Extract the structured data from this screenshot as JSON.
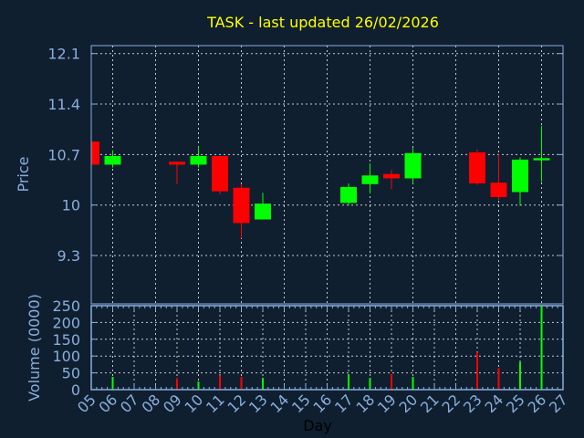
{
  "chart_data": {
    "type": "candlestick",
    "title": "TASK - last updated 26/02/2026",
    "xlabel": "Day",
    "x_ticks": [
      "05",
      "06",
      "07",
      "08",
      "09",
      "10",
      "11",
      "12",
      "13",
      "14",
      "15",
      "16",
      "17",
      "18",
      "19",
      "20",
      "21",
      "22",
      "23",
      "24",
      "25",
      "26",
      "27"
    ],
    "price": {
      "ylabel": "Price",
      "ylim": [
        8.63,
        12.21
      ],
      "y_ticks": [
        9.3,
        10,
        10.7,
        11.4,
        12.1
      ],
      "y_tick_labels": [
        "9.3",
        "10",
        "10.7",
        "11.4",
        "12.1"
      ],
      "grid": true,
      "candles": [
        {
          "day": 5,
          "open": 10.88,
          "high": 10.88,
          "low": 10.56,
          "close": 10.56
        },
        {
          "day": 6,
          "open": 10.56,
          "high": 10.76,
          "low": 10.52,
          "close": 10.68
        },
        {
          "day": 9,
          "open": 10.6,
          "high": 10.6,
          "low": 10.29,
          "close": 10.56
        },
        {
          "day": 10,
          "open": 10.56,
          "high": 10.81,
          "low": 10.52,
          "close": 10.68
        },
        {
          "day": 11,
          "open": 10.68,
          "high": 10.68,
          "low": 10.15,
          "close": 10.19
        },
        {
          "day": 12,
          "open": 10.24,
          "high": 10.29,
          "low": 9.54,
          "close": 9.75
        },
        {
          "day": 13,
          "open": 9.8,
          "high": 10.17,
          "low": 9.8,
          "close": 10.02
        },
        {
          "day": 17,
          "open": 10.03,
          "high": 10.3,
          "low": 9.99,
          "close": 10.25
        },
        {
          "day": 18,
          "open": 10.29,
          "high": 10.58,
          "low": 10.16,
          "close": 10.41
        },
        {
          "day": 19,
          "open": 10.43,
          "high": 10.49,
          "low": 10.22,
          "close": 10.37
        },
        {
          "day": 20,
          "open": 10.37,
          "high": 10.79,
          "low": 10.3,
          "close": 10.72
        },
        {
          "day": 23,
          "open": 10.73,
          "high": 10.77,
          "low": 10.28,
          "close": 10.3
        },
        {
          "day": 24,
          "open": 10.31,
          "high": 10.7,
          "low": 10.07,
          "close": 10.11
        },
        {
          "day": 25,
          "open": 10.18,
          "high": 10.66,
          "low": 9.99,
          "close": 10.63
        },
        {
          "day": 26,
          "open": 10.62,
          "high": 11.1,
          "low": 10.32,
          "close": 10.65
        }
      ]
    },
    "volume": {
      "ylabel": "Volume (0000)",
      "ylim": [
        0,
        250
      ],
      "y_ticks": [
        0,
        50,
        100,
        150,
        200,
        250
      ],
      "y_tick_labels": [
        "0",
        "50",
        "100",
        "150",
        "200",
        "250"
      ],
      "grid": true,
      "bars": [
        {
          "day": 6,
          "value": 38,
          "direction": "up"
        },
        {
          "day": 9,
          "value": 34,
          "direction": "down"
        },
        {
          "day": 10,
          "value": 24,
          "direction": "up"
        },
        {
          "day": 11,
          "value": 42,
          "direction": "down"
        },
        {
          "day": 12,
          "value": 38,
          "direction": "down"
        },
        {
          "day": 13,
          "value": 35,
          "direction": "up"
        },
        {
          "day": 17,
          "value": 46,
          "direction": "up"
        },
        {
          "day": 18,
          "value": 35,
          "direction": "up"
        },
        {
          "day": 19,
          "value": 47,
          "direction": "down"
        },
        {
          "day": 20,
          "value": 38,
          "direction": "up"
        },
        {
          "day": 23,
          "value": 111,
          "direction": "down"
        },
        {
          "day": 24,
          "value": 64,
          "direction": "down"
        },
        {
          "day": 25,
          "value": 82,
          "direction": "up"
        },
        {
          "day": 26,
          "value": 250,
          "direction": "up"
        }
      ]
    },
    "xlim": [
      5,
      27
    ],
    "colors": {
      "background": "#0f1f30",
      "axis": "#8aaedc",
      "grid": "#c8c8c8",
      "title": "#ffff00",
      "up": "#00ff00",
      "down": "#ff0000",
      "xlabel": "#000000"
    }
  }
}
